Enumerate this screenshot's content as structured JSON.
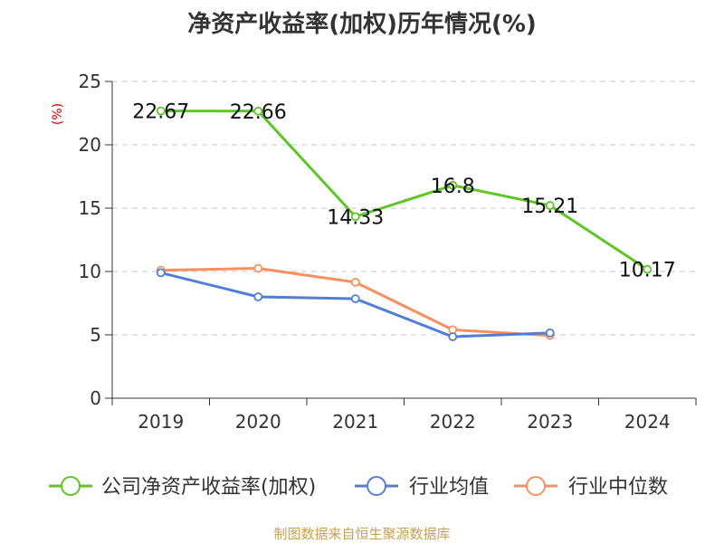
{
  "title": "净资产收益率(加权)历年情况(%)",
  "unit_label": "(%)",
  "source": "制图数据来自恒生聚源数据库",
  "chart_data": {
    "type": "line",
    "title": "净资产收益率(加权)历年情况(%)",
    "ylabel": "(%)",
    "categories": [
      "2019",
      "2020",
      "2021",
      "2022",
      "2023",
      "2024"
    ],
    "ylim": [
      0,
      25
    ],
    "yticks": [
      0,
      5,
      10,
      15,
      20,
      25
    ],
    "grid": true,
    "legend_position": "bottom",
    "series": [
      {
        "name": "公司净资产收益率(加权)",
        "color": "#5cc626",
        "values": [
          22.67,
          22.66,
          14.33,
          16.8,
          15.21,
          10.17
        ],
        "labels": [
          "22.67",
          "22.66",
          "14.33",
          "16.8",
          "15.21",
          "10.17"
        ]
      },
      {
        "name": "行业均值",
        "color": "#4f7fd8",
        "values": [
          9.9,
          8.0,
          7.85,
          4.85,
          5.15,
          null
        ]
      },
      {
        "name": "行业中位数",
        "color": "#f79060",
        "values": [
          10.1,
          10.25,
          9.15,
          5.4,
          4.95,
          null
        ]
      }
    ]
  }
}
